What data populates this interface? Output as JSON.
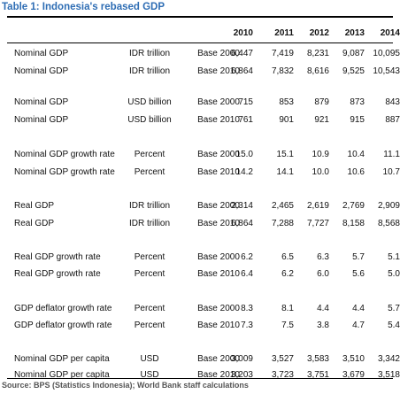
{
  "table": {
    "title": "Table 1: Indonesia's rebased GDP",
    "years": [
      "2010",
      "2011",
      "2012",
      "2013",
      "2014"
    ],
    "rows": [
      {
        "label": "Nominal GDP",
        "unit": "IDR trillion",
        "base": "Base 2000",
        "values": [
          "6,447",
          "7,419",
          "8,231",
          "9,087",
          "10,095"
        ]
      },
      {
        "label": "Nominal GDP",
        "unit": "IDR trillion",
        "base": "Base 2010",
        "values": [
          "6,864",
          "7,832",
          "8,616",
          "9,525",
          "10,543"
        ]
      },
      {
        "label": "Nominal GDP",
        "unit": "USD billion",
        "base": "Base 2000",
        "values": [
          "715",
          "853",
          "879",
          "873",
          "843"
        ]
      },
      {
        "label": "Nominal GDP",
        "unit": "USD billion",
        "base": "Base 2010",
        "values": [
          "761",
          "901",
          "921",
          "915",
          "887"
        ]
      },
      {
        "label": "Nominal GDP growth rate",
        "unit": "Percent",
        "base": "Base 2000",
        "values": [
          "15.0",
          "15.1",
          "10.9",
          "10.4",
          "11.1"
        ]
      },
      {
        "label": "Nominal GDP growth rate",
        "unit": "Percent",
        "base": "Base 2010",
        "values": [
          "14.2",
          "14.1",
          "10.0",
          "10.6",
          "10.7"
        ]
      },
      {
        "label": "Real GDP",
        "unit": "IDR trillion",
        "base": "Base 2000",
        "values": [
          "2,314",
          "2,465",
          "2,619",
          "2,769",
          "2,909"
        ]
      },
      {
        "label": "Real GDP",
        "unit": "IDR trillion",
        "base": "Base 2010",
        "values": [
          "6,864",
          "7,288",
          "7,727",
          "8,158",
          "8,568"
        ]
      },
      {
        "label": "Real GDP growth rate",
        "unit": "Percent",
        "base": "Base 2000",
        "values": [
          "6.2",
          "6.5",
          "6.3",
          "5.7",
          "5.1"
        ]
      },
      {
        "label": "Real GDP growth rate",
        "unit": "Percent",
        "base": "Base 2010",
        "values": [
          "6.4",
          "6.2",
          "6.0",
          "5.6",
          "5.0"
        ]
      },
      {
        "label": "GDP deflator growth rate",
        "unit": "Percent",
        "base": "Base 2000",
        "values": [
          "8.3",
          "8.1",
          "4.4",
          "4.4",
          "5.7"
        ]
      },
      {
        "label": "GDP deflator growth rate",
        "unit": "Percent",
        "base": "Base 2010",
        "values": [
          "7.3",
          "7.5",
          "3.8",
          "4.7",
          "5.4"
        ]
      },
      {
        "label": "Nominal GDP per capita",
        "unit": "USD",
        "base": "Base 2000",
        "values": [
          "3,009",
          "3,527",
          "3,583",
          "3,510",
          "3,342"
        ]
      },
      {
        "label": "Nominal GDP per capita",
        "unit": "USD",
        "base": "Base 2010",
        "values": [
          "3,203",
          "3,723",
          "3,751",
          "3,679",
          "3,518"
        ]
      }
    ],
    "source": "Source: BPS (Statistics Indonesia); World Bank staff calculations"
  }
}
